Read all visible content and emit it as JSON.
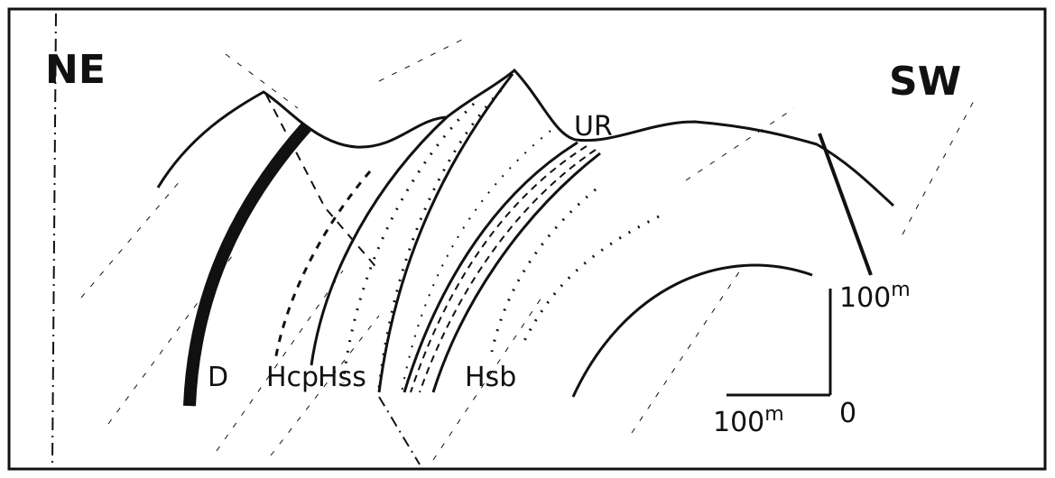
{
  "labels": {
    "ne": "NE",
    "sw": "SW",
    "ur": "UR",
    "d": "D",
    "hcp": "Hcp",
    "hss": "Hss",
    "hsb": "Hsb"
  },
  "scale": {
    "vertical": {
      "value": "100",
      "unit": "m"
    },
    "horizontal": {
      "value": "100",
      "unit": "m"
    },
    "origin": "0"
  }
}
